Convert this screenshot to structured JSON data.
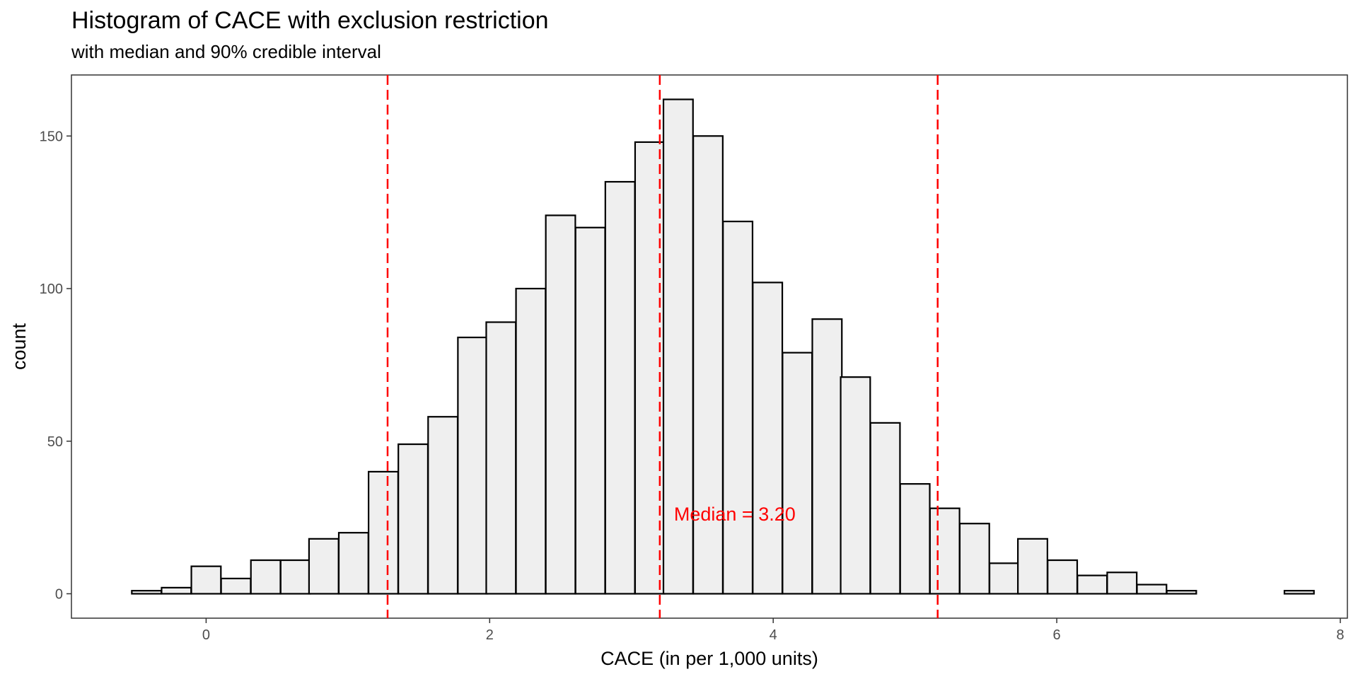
{
  "chart_data": {
    "type": "bar",
    "title": "Histogram of CACE with exclusion restriction",
    "subtitle": "with median and 90% credible interval",
    "xlabel": "CACE (in per 1,000 units)",
    "ylabel": "count",
    "xlim": [
      -0.95,
      8.05
    ],
    "ylim": [
      -8,
      170
    ],
    "x_ticks": [
      0,
      2,
      4,
      6,
      8
    ],
    "x_tick_labels": [
      "0",
      "2",
      "4",
      "6",
      "8"
    ],
    "y_ticks": [
      0,
      50,
      100,
      150
    ],
    "y_tick_labels": [
      "0",
      "50",
      "100",
      "150"
    ],
    "bin_width": 0.2083,
    "bins": [
      {
        "x": -0.42,
        "count": 1
      },
      {
        "x": -0.21,
        "count": 2
      },
      {
        "x": 0.0,
        "count": 9
      },
      {
        "x": 0.21,
        "count": 5
      },
      {
        "x": 0.42,
        "count": 11
      },
      {
        "x": 0.63,
        "count": 11
      },
      {
        "x": 0.83,
        "count": 18
      },
      {
        "x": 1.04,
        "count": 20
      },
      {
        "x": 1.25,
        "count": 40
      },
      {
        "x": 1.46,
        "count": 49
      },
      {
        "x": 1.67,
        "count": 58
      },
      {
        "x": 1.88,
        "count": 84
      },
      {
        "x": 2.08,
        "count": 89
      },
      {
        "x": 2.29,
        "count": 100
      },
      {
        "x": 2.5,
        "count": 124
      },
      {
        "x": 2.71,
        "count": 120
      },
      {
        "x": 2.92,
        "count": 135
      },
      {
        "x": 3.13,
        "count": 148
      },
      {
        "x": 3.33,
        "count": 162
      },
      {
        "x": 3.54,
        "count": 150
      },
      {
        "x": 3.75,
        "count": 122
      },
      {
        "x": 3.96,
        "count": 102
      },
      {
        "x": 4.17,
        "count": 79
      },
      {
        "x": 4.38,
        "count": 90
      },
      {
        "x": 4.58,
        "count": 71
      },
      {
        "x": 4.79,
        "count": 56
      },
      {
        "x": 5.0,
        "count": 36
      },
      {
        "x": 5.21,
        "count": 28
      },
      {
        "x": 5.42,
        "count": 23
      },
      {
        "x": 5.63,
        "count": 10
      },
      {
        "x": 5.83,
        "count": 18
      },
      {
        "x": 6.04,
        "count": 11
      },
      {
        "x": 6.25,
        "count": 6
      },
      {
        "x": 6.46,
        "count": 7
      },
      {
        "x": 6.67,
        "count": 3
      },
      {
        "x": 6.88,
        "count": 1
      },
      {
        "x": 7.08,
        "count": 0
      },
      {
        "x": 7.29,
        "count": 0
      },
      {
        "x": 7.5,
        "count": 0
      },
      {
        "x": 7.71,
        "count": 1
      }
    ],
    "vlines": [
      {
        "x": 1.28,
        "color": "#ff0000",
        "style": "dashed"
      },
      {
        "x": 3.2,
        "color": "#ff0000",
        "style": "dashed"
      },
      {
        "x": 5.16,
        "color": "#ff0000",
        "style": "dashed"
      }
    ],
    "annotation": {
      "text": "Median = 3.20",
      "x": 3.3,
      "y": 24,
      "color": "#ff0000"
    },
    "bar_fill": "#efefef",
    "bar_stroke": "#000000",
    "grid": false,
    "legend": "none"
  }
}
